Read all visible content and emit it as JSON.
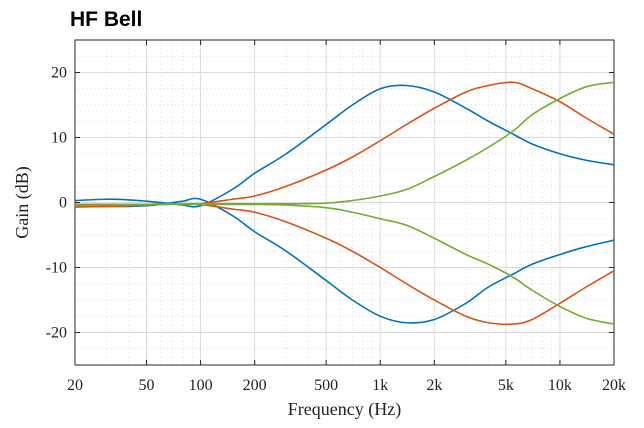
{
  "chart_data": {
    "type": "line",
    "title": "HF Bell",
    "xlabel": "Frequency (Hz)",
    "ylabel": "Gain (dB)",
    "xscale": "log",
    "xlim": [
      20,
      20000
    ],
    "ylim": [
      -25,
      25
    ],
    "x_ticks": [
      20,
      50,
      100,
      200,
      500,
      1000,
      2000,
      5000,
      10000,
      20000
    ],
    "x_tick_labels": [
      "20",
      "50",
      "100",
      "200",
      "500",
      "1k",
      "2k",
      "5k",
      "10k",
      "20k"
    ],
    "y_ticks": [
      -20,
      -10,
      0,
      10,
      20
    ],
    "y_tick_labels": [
      "-20",
      "-10",
      "0",
      "10",
      "20"
    ],
    "grid": true,
    "x": [
      20,
      30,
      40,
      50,
      60,
      70,
      80,
      100,
      150,
      200,
      300,
      500,
      700,
      1000,
      1400,
      2000,
      3000,
      4000,
      5500,
      7000,
      10000,
      14000,
      20000
    ],
    "series": [
      {
        "color": "#0072BD",
        "values": [
          0.3,
          0.5,
          0.4,
          0.2,
          0.0,
          -0.2,
          -0.4,
          -0.5,
          2.0,
          4.5,
          7.5,
          12.0,
          15.0,
          17.5,
          18.0,
          17.0,
          14.5,
          12.5,
          10.5,
          9.0,
          7.5,
          6.5,
          5.8
        ]
      },
      {
        "color": "#0072BD",
        "values": [
          -0.6,
          -0.6,
          -0.6,
          -0.5,
          -0.3,
          0.0,
          0.2,
          0.5,
          -2.0,
          -4.5,
          -7.5,
          -12.0,
          -15.0,
          -17.5,
          -18.5,
          -18.0,
          -15.5,
          -13.0,
          -11.0,
          -9.5,
          -8.0,
          -6.8,
          -5.8
        ]
      },
      {
        "color": "#D95319",
        "values": [
          -0.7,
          -0.6,
          -0.5,
          -0.4,
          -0.3,
          -0.2,
          -0.2,
          -0.2,
          0.5,
          1.0,
          2.5,
          5.0,
          7.0,
          9.5,
          12.0,
          14.5,
          17.0,
          18.0,
          18.5,
          17.5,
          15.5,
          13.0,
          10.5
        ]
      },
      {
        "color": "#D95319",
        "values": [
          -0.3,
          -0.3,
          -0.3,
          -0.3,
          -0.2,
          -0.2,
          -0.2,
          -0.3,
          -1.0,
          -1.5,
          -3.0,
          -5.5,
          -7.5,
          -10.0,
          -12.5,
          -15.0,
          -17.5,
          -18.5,
          -18.7,
          -18.0,
          -15.5,
          -13.0,
          -10.5
        ]
      },
      {
        "color": "#77AC30",
        "values": [
          -0.4,
          -0.4,
          -0.3,
          -0.3,
          -0.3,
          -0.2,
          -0.2,
          -0.2,
          -0.2,
          -0.2,
          -0.2,
          -0.1,
          0.3,
          1.0,
          2.0,
          4.0,
          6.5,
          8.5,
          11.0,
          13.5,
          16.0,
          17.8,
          18.5
        ]
      },
      {
        "color": "#77AC30",
        "values": [
          -0.5,
          -0.4,
          -0.4,
          -0.3,
          -0.3,
          -0.3,
          -0.3,
          -0.3,
          -0.3,
          -0.3,
          -0.4,
          -0.8,
          -1.5,
          -2.5,
          -3.5,
          -5.5,
          -8.0,
          -9.5,
          -11.5,
          -13.5,
          -16.0,
          -17.8,
          -18.7
        ]
      }
    ]
  }
}
